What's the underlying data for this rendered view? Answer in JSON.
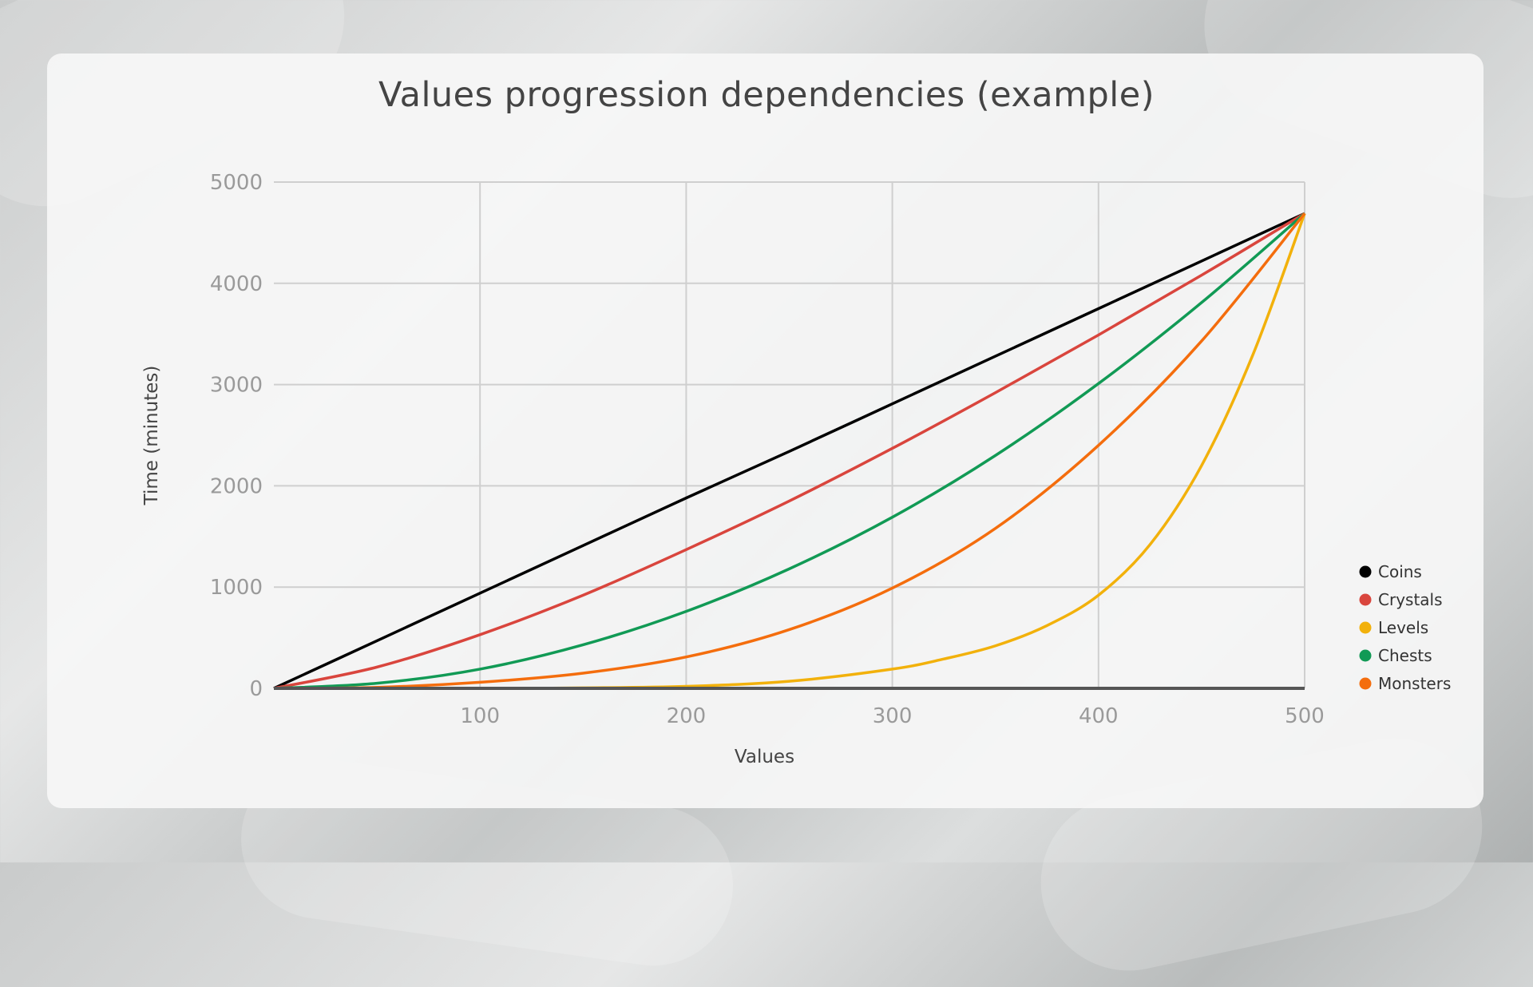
{
  "page": {
    "title": "Values progression dependencies (example)"
  },
  "chart_data": {
    "type": "line",
    "title": "Values progression dependencies (example)",
    "xlabel": "Values",
    "ylabel": "Time (minutes)",
    "xlim": [
      0,
      500
    ],
    "ylim": [
      0,
      5000
    ],
    "x_ticks": [
      100,
      200,
      300,
      400,
      500
    ],
    "y_ticks": [
      0,
      1000,
      2000,
      3000,
      4000,
      5000
    ],
    "grid": true,
    "legend_position": "right",
    "series": [
      {
        "name": "Coins",
        "color": "#000000",
        "x": [
          0,
          50,
          100,
          150,
          200,
          250,
          300,
          350,
          400,
          450,
          500
        ],
        "y": [
          0,
          470,
          940,
          1410,
          1880,
          2340,
          2810,
          3280,
          3750,
          4220,
          4690
        ]
      },
      {
        "name": "Crystals",
        "color": "#d9453d",
        "x": [
          0,
          50,
          100,
          150,
          200,
          250,
          300,
          350,
          400,
          450,
          500
        ],
        "y": [
          0,
          210,
          530,
          920,
          1370,
          1850,
          2370,
          2920,
          3490,
          4080,
          4690
        ]
      },
      {
        "name": "Levels",
        "color": "#f2b10b",
        "x": [
          0,
          100,
          150,
          200,
          250,
          300,
          325,
          350,
          375,
          400,
          425,
          450,
          475,
          500
        ],
        "y": [
          0,
          0,
          5,
          20,
          70,
          190,
          290,
          420,
          620,
          920,
          1420,
          2200,
          3300,
          4690
        ]
      },
      {
        "name": "Chests",
        "color": "#119a55",
        "x": [
          0,
          50,
          100,
          150,
          200,
          250,
          300,
          350,
          400,
          450,
          500
        ],
        "y": [
          0,
          50,
          190,
          430,
          760,
          1180,
          1690,
          2300,
          3010,
          3810,
          4690
        ]
      },
      {
        "name": "Monsters",
        "color": "#f46d0d",
        "x": [
          0,
          50,
          100,
          150,
          200,
          250,
          300,
          350,
          400,
          450,
          500
        ],
        "y": [
          0,
          10,
          60,
          150,
          310,
          580,
          990,
          1580,
          2400,
          3430,
          4690
        ]
      }
    ]
  }
}
